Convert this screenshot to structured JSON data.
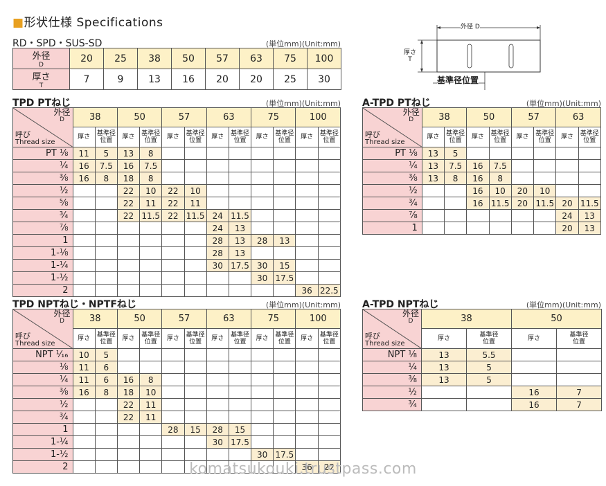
{
  "page_title": {
    "square": "■",
    "text": "形状仕様 Specifications"
  },
  "rd": {
    "title": "RD・SPD・SUS-SD",
    "unit": "(単位mm)(Unit:mm)",
    "row1_label": "外径",
    "row1_sub": "D",
    "row2_label": "厚さ",
    "row2_sub": "T",
    "diameters": [
      "20",
      "25",
      "38",
      "50",
      "57",
      "63",
      "75",
      "100"
    ],
    "thickness": [
      "7",
      "9",
      "13",
      "16",
      "20",
      "20",
      "25",
      "30"
    ]
  },
  "diagram": {
    "outer": "外径 D",
    "thick": "厚さ",
    "thick_sub": "T",
    "ref": "基準径位置"
  },
  "tpd_pt": {
    "title": "TPD PTねじ",
    "unit": "(単位mm)(Unit:mm)",
    "corner_tr": "外径",
    "corner_tr2": "D",
    "corner_bl": "呼び",
    "corner_bl2": "Thread size",
    "sub_a": "厚さ",
    "sub_b1": "基準径",
    "sub_b2": "位置",
    "diameters": [
      "38",
      "50",
      "57",
      "63",
      "75",
      "100"
    ],
    "rows": [
      {
        "thread": "PT ⅛",
        "v": [
          "11",
          "5",
          "13",
          "8",
          "",
          "",
          "",
          "",
          "",
          "",
          "",
          ""
        ]
      },
      {
        "thread": "¼",
        "v": [
          "16",
          "7.5",
          "16",
          "7.5",
          "",
          "",
          "",
          "",
          "",
          "",
          "",
          ""
        ]
      },
      {
        "thread": "⅜",
        "v": [
          "16",
          "8",
          "18",
          "8",
          "",
          "",
          "",
          "",
          "",
          "",
          "",
          ""
        ]
      },
      {
        "thread": "½",
        "v": [
          "",
          "",
          "22",
          "10",
          "22",
          "10",
          "",
          "",
          "",
          "",
          "",
          ""
        ]
      },
      {
        "thread": "⅝",
        "v": [
          "",
          "",
          "22",
          "11",
          "22",
          "11",
          "",
          "",
          "",
          "",
          "",
          ""
        ]
      },
      {
        "thread": "¾",
        "v": [
          "",
          "",
          "22",
          "11.5",
          "22",
          "11.5",
          "24",
          "11.5",
          "",
          "",
          "",
          ""
        ]
      },
      {
        "thread": "⅞",
        "v": [
          "",
          "",
          "",
          "",
          "",
          "",
          "24",
          "13",
          "",
          "",
          "",
          ""
        ]
      },
      {
        "thread": "1",
        "v": [
          "",
          "",
          "",
          "",
          "",
          "",
          "28",
          "13",
          "28",
          "13",
          "",
          ""
        ]
      },
      {
        "thread": "1-⅛",
        "v": [
          "",
          "",
          "",
          "",
          "",
          "",
          "28",
          "13",
          "",
          "",
          "",
          ""
        ]
      },
      {
        "thread": "1-¼",
        "v": [
          "",
          "",
          "",
          "",
          "",
          "",
          "30",
          "17.5",
          "30",
          "15",
          "",
          ""
        ]
      },
      {
        "thread": "1-½",
        "v": [
          "",
          "",
          "",
          "",
          "",
          "",
          "",
          "",
          "30",
          "17.5",
          "",
          ""
        ]
      },
      {
        "thread": "2",
        "v": [
          "",
          "",
          "",
          "",
          "",
          "",
          "",
          "",
          "",
          "",
          "36",
          "22.5"
        ]
      }
    ]
  },
  "atpd_pt": {
    "title": "A-TPD PTねじ",
    "unit": "(単位mm)(Unit:mm)",
    "corner_tr": "外径",
    "corner_tr2": "D",
    "corner_bl": "呼び",
    "corner_bl2": "Thread size",
    "sub_a": "厚さ",
    "sub_b1": "基準径",
    "sub_b2": "位置",
    "diameters": [
      "38",
      "50",
      "57",
      "63"
    ],
    "rows": [
      {
        "thread": "PT ⅛",
        "v": [
          "13",
          "5",
          "",
          "",
          "",
          "",
          "",
          ""
        ]
      },
      {
        "thread": "¼",
        "v": [
          "13",
          "7.5",
          "16",
          "7.5",
          "",
          "",
          "",
          ""
        ]
      },
      {
        "thread": "⅜",
        "v": [
          "13",
          "8",
          "16",
          "8",
          "",
          "",
          "",
          ""
        ]
      },
      {
        "thread": "½",
        "v": [
          "",
          "",
          "16",
          "10",
          "20",
          "10",
          "",
          ""
        ]
      },
      {
        "thread": "¾",
        "v": [
          "",
          "",
          "16",
          "11.5",
          "20",
          "11.5",
          "20",
          "11.5"
        ]
      },
      {
        "thread": "⅞",
        "v": [
          "",
          "",
          "",
          "",
          "",
          "",
          "24",
          "13"
        ]
      },
      {
        "thread": "1",
        "v": [
          "",
          "",
          "",
          "",
          "",
          "",
          "20",
          "13"
        ]
      }
    ]
  },
  "tpd_npt": {
    "title": "TPD NPTねじ・NPTFねじ",
    "unit": "(単位mm)(Unit:mm)",
    "corner_tr": "外径",
    "corner_tr2": "D",
    "corner_bl": "呼び",
    "corner_bl2": "Thread size",
    "sub_a": "厚さ",
    "sub_b1": "基準径",
    "sub_b2": "位置",
    "diameters": [
      "38",
      "50",
      "57",
      "63",
      "75",
      "100"
    ],
    "rows": [
      {
        "thread": "NPT ¹⁄₁₆",
        "v": [
          "10",
          "5",
          "",
          "",
          "",
          "",
          "",
          "",
          "",
          "",
          "",
          ""
        ]
      },
      {
        "thread": "⅛",
        "v": [
          "11",
          "6",
          "",
          "",
          "",
          "",
          "",
          "",
          "",
          "",
          "",
          ""
        ]
      },
      {
        "thread": "¼",
        "v": [
          "11",
          "6",
          "16",
          "8",
          "",
          "",
          "",
          "",
          "",
          "",
          "",
          ""
        ]
      },
      {
        "thread": "⅜",
        "v": [
          "16",
          "8",
          "18",
          "10",
          "",
          "",
          "",
          "",
          "",
          "",
          "",
          ""
        ]
      },
      {
        "thread": "½",
        "v": [
          "",
          "",
          "22",
          "11",
          "",
          "",
          "",
          "",
          "",
          "",
          "",
          ""
        ]
      },
      {
        "thread": "¾",
        "v": [
          "",
          "",
          "22",
          "11",
          "",
          "",
          "",
          "",
          "",
          "",
          "",
          ""
        ]
      },
      {
        "thread": "1",
        "v": [
          "",
          "",
          "",
          "",
          "28",
          "15",
          "28",
          "15",
          "",
          "",
          "",
          ""
        ]
      },
      {
        "thread": "1-¼",
        "v": [
          "",
          "",
          "",
          "",
          "",
          "",
          "30",
          "17.5",
          "",
          "",
          "",
          ""
        ]
      },
      {
        "thread": "1-½",
        "v": [
          "",
          "",
          "",
          "",
          "",
          "",
          "",
          "",
          "30",
          "17.5",
          "",
          ""
        ]
      },
      {
        "thread": "2",
        "v": [
          "",
          "",
          "",
          "",
          "",
          "",
          "",
          "",
          "",
          "",
          "36",
          "22"
        ]
      }
    ]
  },
  "atpd_npt": {
    "title": "A-TPD NPTねじ",
    "unit": "(単位mm)(Unit:mm)",
    "corner_tr": "外径",
    "corner_tr2": "D",
    "corner_bl": "呼び",
    "corner_bl2": "Thread size",
    "sub_a": "厚さ",
    "sub_b1": "基準径",
    "sub_b2": "位置",
    "diameters": [
      "38",
      "50"
    ],
    "rows": [
      {
        "thread": "NPT ⅛",
        "v": [
          "13",
          "5.5",
          "",
          ""
        ]
      },
      {
        "thread": "¼",
        "v": [
          "13",
          "5",
          "",
          ""
        ]
      },
      {
        "thread": "⅜",
        "v": [
          "13",
          "5",
          "",
          ""
        ]
      },
      {
        "thread": "½",
        "v": [
          "",
          "",
          "16",
          "7"
        ]
      },
      {
        "thread": "¾",
        "v": [
          "",
          "",
          "16",
          "7"
        ]
      }
    ]
  },
  "watermark": "komatsukouki.trustpass.com"
}
